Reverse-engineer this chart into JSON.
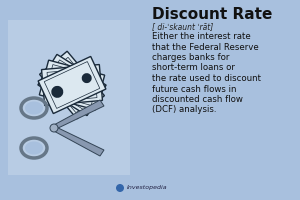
{
  "bg_color": "#a8c0de",
  "left_bg_color": "#b8cce4",
  "title": "Discount Rate",
  "phonetic": "[ di-ˈskaunt ˈrāt]",
  "definition_lines": [
    "Either the interest rate",
    "that the Federal Reserve",
    "charges banks for",
    "short-term loans or",
    "the rate used to discount",
    "future cash flows in",
    "discounted cash flow",
    "(DCF) analysis."
  ],
  "source": "Investopedia",
  "title_fontsize": 11,
  "phonetic_fontsize": 5.5,
  "def_fontsize": 6.2,
  "source_fontsize": 4.5,
  "title_color": "#111111",
  "text_color": "#111111",
  "phonetic_color": "#222222",
  "bill_face_color": "#dce8f0",
  "bill_edge_color": "#1a2a3a",
  "bill_dot_color": "#1a2a3a",
  "scissors_blade_color": "#8898b0",
  "scissors_edge_color": "#334455",
  "scissors_ring_color": "#667788"
}
